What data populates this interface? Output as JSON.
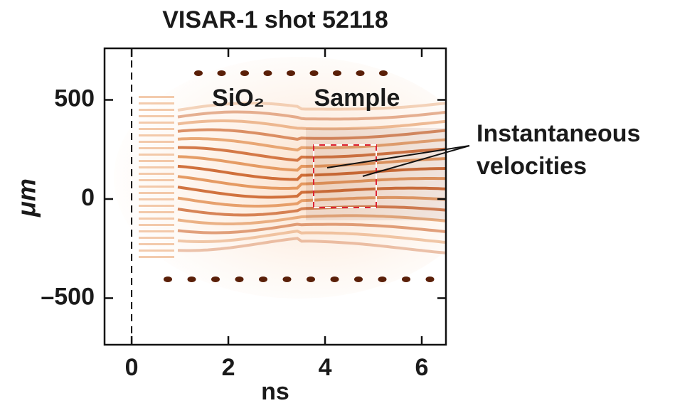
{
  "chart_data": {
    "type": "image",
    "title": "VISAR-1 shot 52118",
    "x_label": "ns",
    "y_label": "μm",
    "xlim": [
      -0.56,
      6.5
    ],
    "ylim": [
      -735,
      760
    ],
    "xticks": [
      0,
      2,
      4,
      6
    ],
    "yticks": [
      {
        "value": -500,
        "label": "–500"
      },
      0,
      500
    ],
    "annotations": [
      "SiO₂",
      "Sample",
      "Instantaneous",
      "velocities"
    ]
  }
}
